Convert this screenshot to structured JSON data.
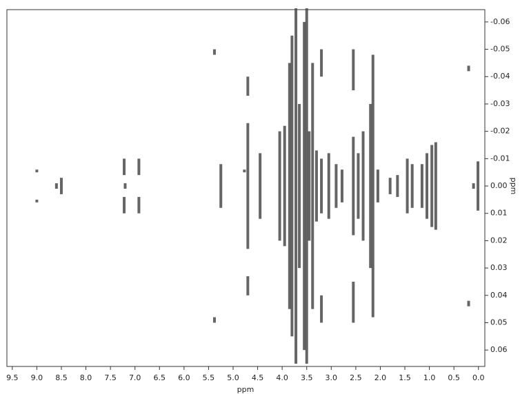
{
  "chart_data": {
    "type": "nmr2d",
    "x_label": "ppm",
    "y_label": "ppm",
    "color": "#4a4a4a",
    "xlim": [
      9.61,
      -0.13
    ],
    "ylim": [
      -0.0645,
      0.066
    ],
    "xticks": [
      9.5,
      {
        "value": 9,
        "label": "9.0"
      },
      8.5,
      {
        "value": 8,
        "label": "8.0"
      },
      7.5,
      {
        "value": 7,
        "label": "7.0"
      },
      6.5,
      {
        "value": 6,
        "label": "6.0"
      },
      5.5,
      {
        "value": 5,
        "label": "5.0"
      },
      4.5,
      {
        "value": 4,
        "label": "4.0"
      },
      3.5,
      {
        "value": 3,
        "label": "3.0"
      },
      2.5,
      {
        "value": 2,
        "label": "2.0"
      },
      1.5,
      {
        "value": 1,
        "label": "1.0"
      },
      0.5,
      {
        "value": 0,
        "label": "0.0"
      }
    ],
    "yticks": [
      -0.06,
      -0.05,
      -0.04,
      -0.03,
      -0.02,
      -0.01,
      {
        "value": 0,
        "label": "0.00"
      },
      0.01,
      0.02,
      0.03,
      0.04,
      0.05,
      0.06
    ],
    "peaks": {
      "x": [
        9.0,
        9.0,
        8.6,
        8.5,
        7.22,
        7.22,
        7.2,
        6.92,
        6.92,
        5.38,
        5.38,
        5.25,
        4.77,
        4.7,
        4.7,
        4.7,
        4.45,
        4.05,
        3.95,
        3.85,
        3.8,
        3.72,
        3.65,
        3.55,
        3.5,
        3.45,
        3.38,
        3.3,
        3.2,
        3.2,
        3.2,
        3.05,
        2.9,
        2.78,
        2.55,
        2.55,
        2.55,
        2.45,
        2.35,
        2.2,
        2.15,
        2.05,
        1.8,
        1.65,
        1.45,
        1.35,
        1.15,
        1.05,
        0.95,
        0.87,
        0.2,
        0.2,
        0.1,
        0.01
      ],
      "y0": [
        -0.006,
        0.005,
        -0.001,
        -0.003,
        -0.01,
        0.004,
        -0.001,
        -0.01,
        0.004,
        -0.05,
        0.048,
        -0.008,
        -0.006,
        -0.04,
        -0.023,
        0.033,
        -0.012,
        -0.02,
        -0.022,
        -0.045,
        -0.055,
        -0.065,
        -0.03,
        -0.06,
        -0.065,
        -0.02,
        -0.045,
        -0.013,
        -0.05,
        -0.01,
        0.04,
        -0.012,
        -0.008,
        -0.006,
        -0.05,
        -0.018,
        0.035,
        -0.012,
        -0.02,
        -0.03,
        -0.048,
        -0.006,
        -0.003,
        -0.004,
        -0.01,
        -0.008,
        -0.008,
        -0.012,
        -0.015,
        -0.016,
        -0.044,
        0.042,
        -0.001,
        -0.009
      ],
      "y1": [
        -0.005,
        0.006,
        0.001,
        0.003,
        -0.004,
        0.01,
        0.001,
        -0.004,
        0.01,
        -0.048,
        0.05,
        0.008,
        -0.005,
        -0.033,
        0.023,
        0.04,
        0.012,
        0.02,
        0.022,
        0.045,
        0.055,
        0.065,
        0.03,
        0.06,
        0.065,
        0.02,
        0.045,
        0.013,
        -0.04,
        0.01,
        0.05,
        0.012,
        0.008,
        0.006,
        -0.035,
        0.018,
        0.05,
        0.012,
        0.02,
        0.03,
        0.048,
        0.006,
        0.003,
        0.004,
        0.01,
        0.008,
        0.008,
        0.012,
        0.015,
        0.016,
        -0.042,
        0.044,
        0.001,
        0.009
      ]
    }
  }
}
